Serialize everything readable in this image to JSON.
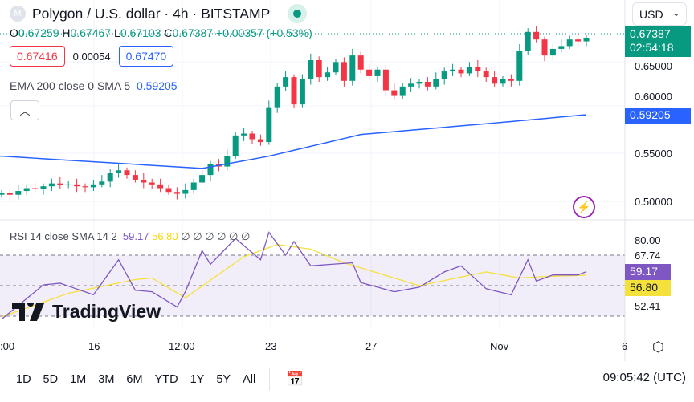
{
  "header": {
    "symbol_logo": "M",
    "title": "Polygon / U.S. dollar · 4h · BITSTAMP",
    "currency": "USD"
  },
  "ohlc": {
    "o_label": "O",
    "o": "0.67259",
    "h_label": "H",
    "h": "0.67467",
    "l_label": "L",
    "l": "0.67103",
    "c_label": "C",
    "c": "0.67387",
    "change": "+0.00357 (+0.53%)"
  },
  "bidask": {
    "sell": "0.67416",
    "spread": "0.00054",
    "buy": "0.67470"
  },
  "ema_legend": {
    "label": "EMA 200 close 0 SMA 5",
    "value": "0.59205"
  },
  "rsi_legend": {
    "label": "RSI 14 close SMA 14 2",
    "rsi": "59.17",
    "sma": "56.80",
    "extra": "∅ ∅ ∅ ∅ ∅ ∅"
  },
  "price_axis": [
    "0.65000",
    "0.60000",
    "0.55000",
    "0.50000"
  ],
  "price_tags": {
    "last": "0.67387",
    "countdown": "02:54:18",
    "ema": "0.59205"
  },
  "rsi_axis": [
    "80.00",
    "67.74",
    "52.41"
  ],
  "rsi_tags": {
    "rsi": "59.17",
    "sma": "56.80"
  },
  "time_axis": [
    ":00",
    "16",
    "12:00",
    "23",
    "27",
    "Nov",
    "6"
  ],
  "ranges": [
    "1D",
    "5D",
    "1M",
    "3M",
    "6M",
    "YTD",
    "1Y",
    "5Y",
    "All"
  ],
  "clock": "09:05:42 (UTC)",
  "watermark": "TradingView",
  "colors": {
    "up": "#089981",
    "down": "#f23645",
    "ema": "#2962ff",
    "rsi": "#7e57c2",
    "rsi_sma": "#f5e13b"
  },
  "chart_data": {
    "type": "candlestick",
    "title": "Polygon / U.S. dollar · 4h · BITSTAMP",
    "ylim": [
      0.49,
      0.69
    ],
    "closes": [
      0.509,
      0.507,
      0.511,
      0.514,
      0.513,
      0.516,
      0.519,
      0.517,
      0.518,
      0.516,
      0.515,
      0.518,
      0.521,
      0.53,
      0.533,
      0.528,
      0.523,
      0.52,
      0.518,
      0.514,
      0.51,
      0.508,
      0.512,
      0.52,
      0.528,
      0.54,
      0.537,
      0.548,
      0.57,
      0.572,
      0.566,
      0.563,
      0.6,
      0.622,
      0.632,
      0.603,
      0.63,
      0.65,
      0.632,
      0.637,
      0.648,
      0.628,
      0.655,
      0.64,
      0.633,
      0.64,
      0.618,
      0.612,
      0.622,
      0.625,
      0.627,
      0.622,
      0.63,
      0.638,
      0.64,
      0.636,
      0.643,
      0.638,
      0.632,
      0.625,
      0.63,
      0.628,
      0.66,
      0.68,
      0.672,
      0.655,
      0.662,
      0.665,
      0.672,
      0.67,
      0.67387
    ],
    "ema200": [
      [
        0,
        0.548
      ],
      [
        24,
        0.535
      ],
      [
        32,
        0.548
      ],
      [
        43,
        0.571
      ],
      [
        60,
        0.584
      ],
      [
        70,
        0.59205
      ]
    ],
    "rsi": {
      "ylim": [
        25,
        90
      ],
      "bands": [
        70,
        50,
        30
      ],
      "rsi_points": [
        [
          0,
          28
        ],
        [
          5,
          50.5
        ],
        [
          7,
          51.6
        ],
        [
          11,
          44
        ],
        [
          14,
          67
        ],
        [
          16,
          47
        ],
        [
          18,
          46
        ],
        [
          21,
          36
        ],
        [
          22,
          46
        ],
        [
          24,
          73
        ],
        [
          25,
          64
        ],
        [
          28,
          81
        ],
        [
          31,
          67
        ],
        [
          32,
          85
        ],
        [
          34,
          70
        ],
        [
          35,
          79
        ],
        [
          37,
          63
        ],
        [
          42,
          65
        ],
        [
          43,
          52
        ],
        [
          47,
          46
        ],
        [
          50,
          49
        ],
        [
          53,
          59
        ],
        [
          55,
          63
        ],
        [
          57,
          53
        ],
        [
          58,
          48
        ],
        [
          61,
          44
        ],
        [
          63,
          67
        ],
        [
          64,
          53
        ],
        [
          66,
          57
        ],
        [
          69,
          57
        ],
        [
          70,
          59.17
        ]
      ],
      "sma_points": [
        [
          0,
          29.5
        ],
        [
          8,
          45
        ],
        [
          16,
          54
        ],
        [
          18,
          55
        ],
        [
          22,
          42
        ],
        [
          29,
          69
        ],
        [
          33,
          77
        ],
        [
          37,
          74
        ],
        [
          41,
          65
        ],
        [
          44,
          60
        ],
        [
          50,
          50
        ],
        [
          58,
          59
        ],
        [
          62,
          55
        ],
        [
          65,
          56
        ],
        [
          70,
          56.8
        ]
      ]
    }
  }
}
